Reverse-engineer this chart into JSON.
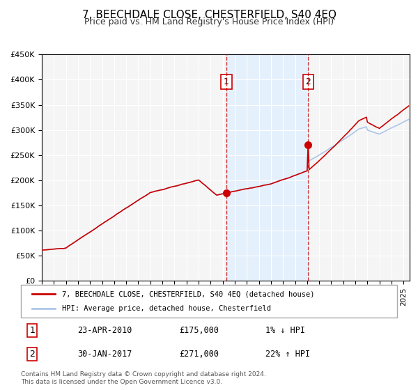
{
  "title": "7, BEECHDALE CLOSE, CHESTERFIELD, S40 4EQ",
  "subtitle": "Price paid vs. HM Land Registry's House Price Index (HPI)",
  "xlabel": "",
  "ylabel": "",
  "ylim": [
    0,
    450000
  ],
  "yticks": [
    0,
    50000,
    100000,
    150000,
    200000,
    250000,
    300000,
    350000,
    400000,
    450000
  ],
  "ytick_labels": [
    "£0",
    "£50K",
    "£100K",
    "£150K",
    "£200K",
    "£250K",
    "£300K",
    "£350K",
    "£400K",
    "£450K"
  ],
  "xlim_start": 1995.0,
  "xlim_end": 2025.5,
  "hpi_color": "#aec6e8",
  "price_color": "#cc0000",
  "sale1_date": 2010.31,
  "sale1_price": 175000,
  "sale2_date": 2017.08,
  "sale2_price": 271000,
  "shade_start": 2010.31,
  "shade_end": 2017.08,
  "legend_line1": "7, BEECHDALE CLOSE, CHESTERFIELD, S40 4EQ (detached house)",
  "legend_line2": "HPI: Average price, detached house, Chesterfield",
  "table_row1_num": "1",
  "table_row1_date": "23-APR-2010",
  "table_row1_price": "£175,000",
  "table_row1_hpi": "1% ↓ HPI",
  "table_row2_num": "2",
  "table_row2_date": "30-JAN-2017",
  "table_row2_price": "£271,000",
  "table_row2_hpi": "22% ↑ HPI",
  "footer_line1": "Contains HM Land Registry data © Crown copyright and database right 2024.",
  "footer_line2": "This data is licensed under the Open Government Licence v3.0.",
  "background_color": "#ffffff",
  "plot_bg_color": "#f5f5f5",
  "grid_color": "#ffffff"
}
